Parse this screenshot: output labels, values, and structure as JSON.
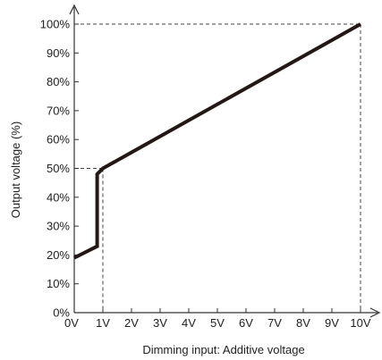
{
  "chart_data": {
    "type": "line",
    "title": "",
    "xlabel": "Dimming input: Additive voltage",
    "ylabel": "Output voltage (%)",
    "xlim": [
      0,
      10
    ],
    "ylim": [
      0,
      100
    ],
    "x_ticks": [
      "0V",
      "1V",
      "2V",
      "3V",
      "4V",
      "5V",
      "6V",
      "7V",
      "8V",
      "9V",
      "10V"
    ],
    "y_ticks": [
      "0%",
      "10%",
      "20%",
      "30%",
      "40%",
      "50%",
      "60%",
      "70%",
      "80%",
      "90%",
      "100%"
    ],
    "grid": false,
    "series": [
      {
        "x": [
          0,
          0.8,
          0.8,
          1,
          10
        ],
        "y": [
          19,
          23,
          48,
          50,
          100
        ],
        "color": "#231815"
      }
    ],
    "reference_lines": [
      {
        "x": [
          0,
          1
        ],
        "y": [
          50,
          50
        ]
      },
      {
        "x": [
          1,
          1
        ],
        "y": [
          50,
          0
        ]
      },
      {
        "x": [
          0,
          10
        ],
        "y": [
          100,
          100
        ]
      },
      {
        "x": [
          10,
          10
        ],
        "y": [
          100,
          0
        ]
      }
    ],
    "colors": {
      "line": "#231815",
      "axis": "#333333",
      "dashed": "#444444",
      "text": "#222222"
    }
  }
}
